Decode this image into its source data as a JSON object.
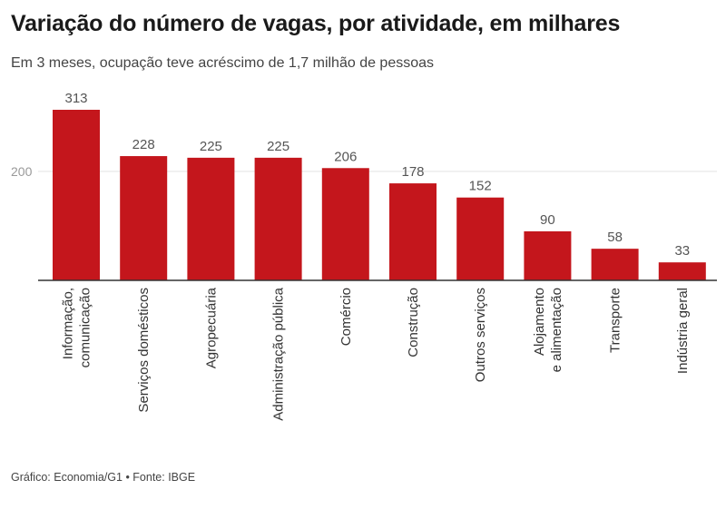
{
  "title": "Variação do número de vagas, por atividade, em milhares",
  "subtitle": "Em 3 meses, ocupação teve acréscimo de 1,7 milhão de pessoas",
  "source": "Gráfico: Economia/G1 • Fonte: IBGE",
  "colors": {
    "bar": "#c4161c",
    "grid": "#e3e3e3",
    "axis": "#333333"
  },
  "chart_data": {
    "type": "bar",
    "title": "Variação do número de vagas, por atividade, em milhares",
    "subtitle": "Em 3 meses, ocupação teve acréscimo de 1,7 milhão de pessoas",
    "categories": [
      [
        "Informação,",
        "comunicação"
      ],
      [
        "Serviços domésticos"
      ],
      [
        "Agropecuária"
      ],
      [
        "Administração pública"
      ],
      [
        "Comércio"
      ],
      [
        "Construção"
      ],
      [
        "Outros serviços"
      ],
      [
        "Alojamento",
        "e alimentação"
      ],
      [
        "Transporte"
      ],
      [
        "Indústria geral"
      ]
    ],
    "values": [
      313,
      228,
      225,
      225,
      206,
      178,
      152,
      90,
      58,
      33
    ],
    "yticks": [
      200
    ],
    "ylim": [
      0,
      313
    ],
    "grid": true,
    "xlabel": "",
    "ylabel": ""
  }
}
